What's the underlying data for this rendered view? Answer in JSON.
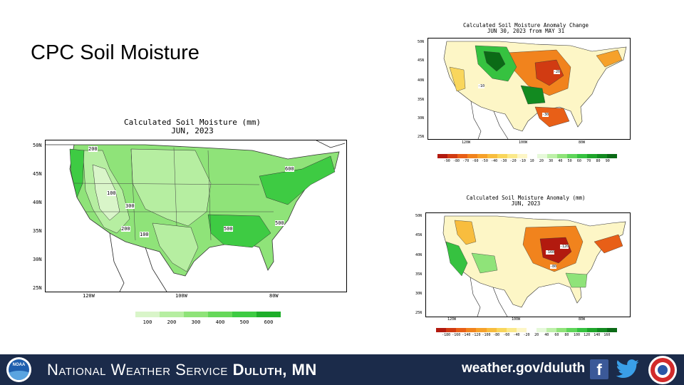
{
  "slide": {
    "title": "CPC Soil Moisture"
  },
  "map_main": {
    "title_line1": "Calculated Soil Moisture (mm)",
    "title_line2": "JUN, 2023",
    "lat_ticks": [
      "50N",
      "45N",
      "40N",
      "35N",
      "30N",
      "25N"
    ],
    "lon_ticks": [
      "120W",
      "100W",
      "80W"
    ],
    "contour_labels": [
      "200",
      "100",
      "300",
      "200",
      "100",
      "500",
      "600",
      "500"
    ],
    "legend": {
      "labels": [
        "100",
        "200",
        "300",
        "400",
        "500",
        "600"
      ],
      "colors": [
        "#d9f5c9",
        "#b6eea1",
        "#8fe379",
        "#66d85a",
        "#3ecb43",
        "#1eae2a"
      ]
    }
  },
  "map_change": {
    "title_line1": "Calculated Soil Moisture Anomaly Change",
    "title_line2": "JUN 30, 2023 from MAY 31",
    "lat_ticks": [
      "50N",
      "45N",
      "40N",
      "35N",
      "30N",
      "25N"
    ],
    "lon_ticks": [
      "120W",
      "100W",
      "80W"
    ],
    "contour_labels": [
      "-20",
      "-10",
      "-30"
    ],
    "legend": {
      "labels": [
        "-90",
        "-80",
        "-70",
        "-60",
        "-50",
        "-40",
        "-30",
        "-20",
        "-10",
        "10",
        "20",
        "30",
        "40",
        "50",
        "60",
        "70",
        "80",
        "90"
      ],
      "colors": [
        "#b21a0f",
        "#d13b12",
        "#e85f17",
        "#f1831d",
        "#f6a12a",
        "#f8bd3e",
        "#f9d65c",
        "#fbe98a",
        "#fdf6c6",
        "#ffffff",
        "#e6f9d9",
        "#bdf0a8",
        "#8fe379",
        "#5fd55a",
        "#36c240",
        "#1ea52a",
        "#128a20",
        "#0b6a16"
      ]
    }
  },
  "map_anomaly": {
    "title_line1": "Calculated Soil Moisture Anomaly (mm)",
    "title_line2": "JUN, 2023",
    "lat_ticks": [
      "50N",
      "45N",
      "40N",
      "35N",
      "30N",
      "25N"
    ],
    "lon_ticks": [
      "120W",
      "100W",
      "80W"
    ],
    "contour_labels": [
      "-160",
      "-120",
      "-80"
    ],
    "legend": {
      "labels": [
        "-180",
        "-160",
        "-140",
        "-120",
        "-100",
        "-80",
        "-60",
        "-40",
        "-20",
        "20",
        "40",
        "60",
        "80",
        "100",
        "120",
        "140",
        "160"
      ],
      "colors": [
        "#b21a0f",
        "#d13b12",
        "#e85f17",
        "#f1831d",
        "#f6a12a",
        "#f8bd3e",
        "#f9d65c",
        "#fbe98a",
        "#fdf6c6",
        "#ffffff",
        "#e6f9d9",
        "#bdf0a8",
        "#8fe379",
        "#5fd55a",
        "#36c240",
        "#1ea52a",
        "#128a20",
        "#0b6a16"
      ]
    }
  },
  "footer": {
    "agency_small": "NOAA",
    "title_part1": "National Weather Service",
    "title_part2": "Duluth, MN",
    "url": "weather.gov/duluth",
    "facebook_icon": "facebook-icon",
    "twitter_icon": "twitter-icon",
    "bg_color": "#1b2b4a"
  }
}
